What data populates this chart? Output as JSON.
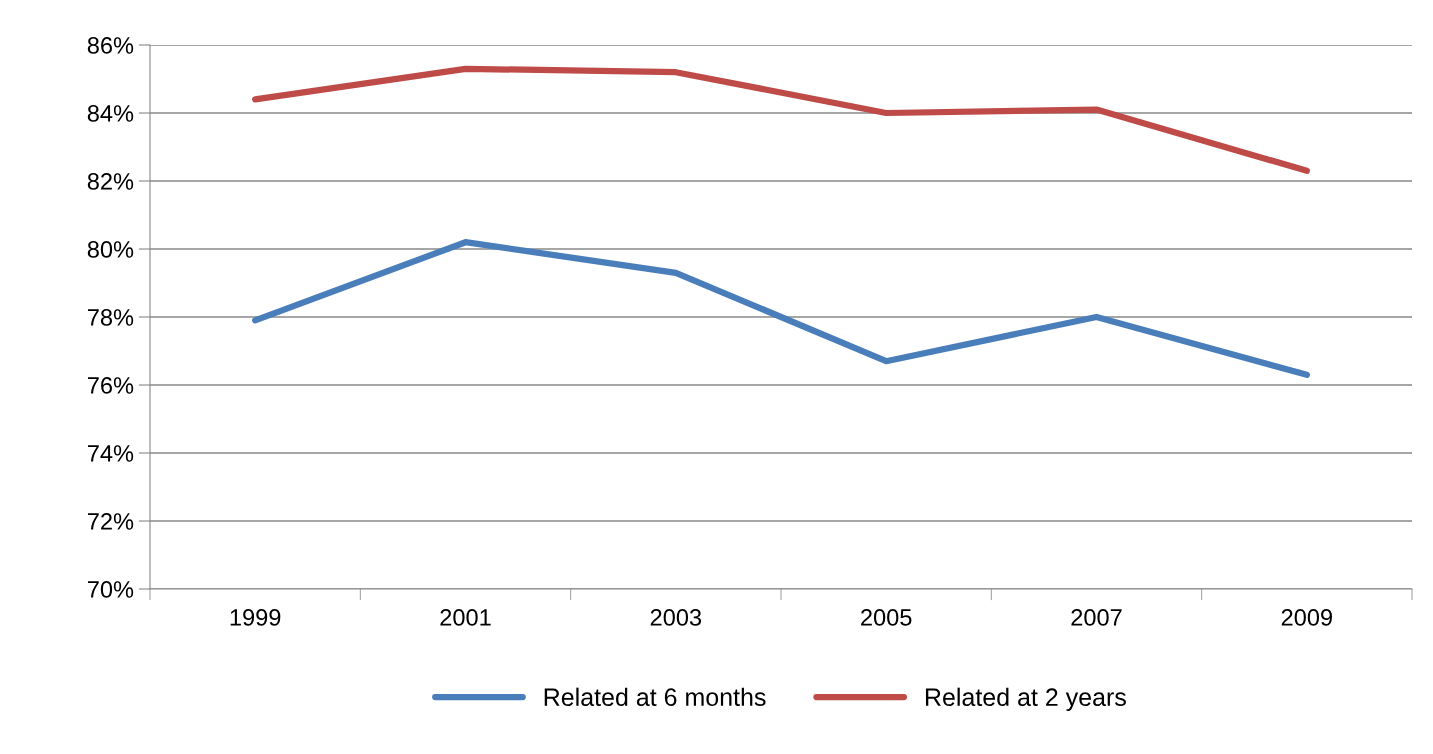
{
  "chart_data": {
    "type": "line",
    "categories": [
      "1999",
      "2001",
      "2003",
      "2005",
      "2007",
      "2009"
    ],
    "series": [
      {
        "name": "Related at 6 months",
        "color": "#4a7ebb",
        "values": [
          77.9,
          80.2,
          79.3,
          76.7,
          78.0,
          76.3
        ]
      },
      {
        "name": "Related at 2 years",
        "color": "#be4b48",
        "values": [
          84.4,
          85.3,
          85.2,
          84.0,
          84.1,
          82.3
        ]
      }
    ],
    "ylim": [
      70,
      86
    ],
    "yticks": [
      {
        "value": 70,
        "label": "70%"
      },
      {
        "value": 72,
        "label": "72%"
      },
      {
        "value": 74,
        "label": "74%"
      },
      {
        "value": 76,
        "label": "76%"
      },
      {
        "value": 78,
        "label": "78%"
      },
      {
        "value": 80,
        "label": "80%"
      },
      {
        "value": 82,
        "label": "82%"
      },
      {
        "value": 84,
        "label": "84%"
      },
      {
        "value": 86,
        "label": "86%"
      }
    ],
    "grid": "y",
    "legend": "bottom",
    "marker": "none",
    "line_style": "solid"
  }
}
